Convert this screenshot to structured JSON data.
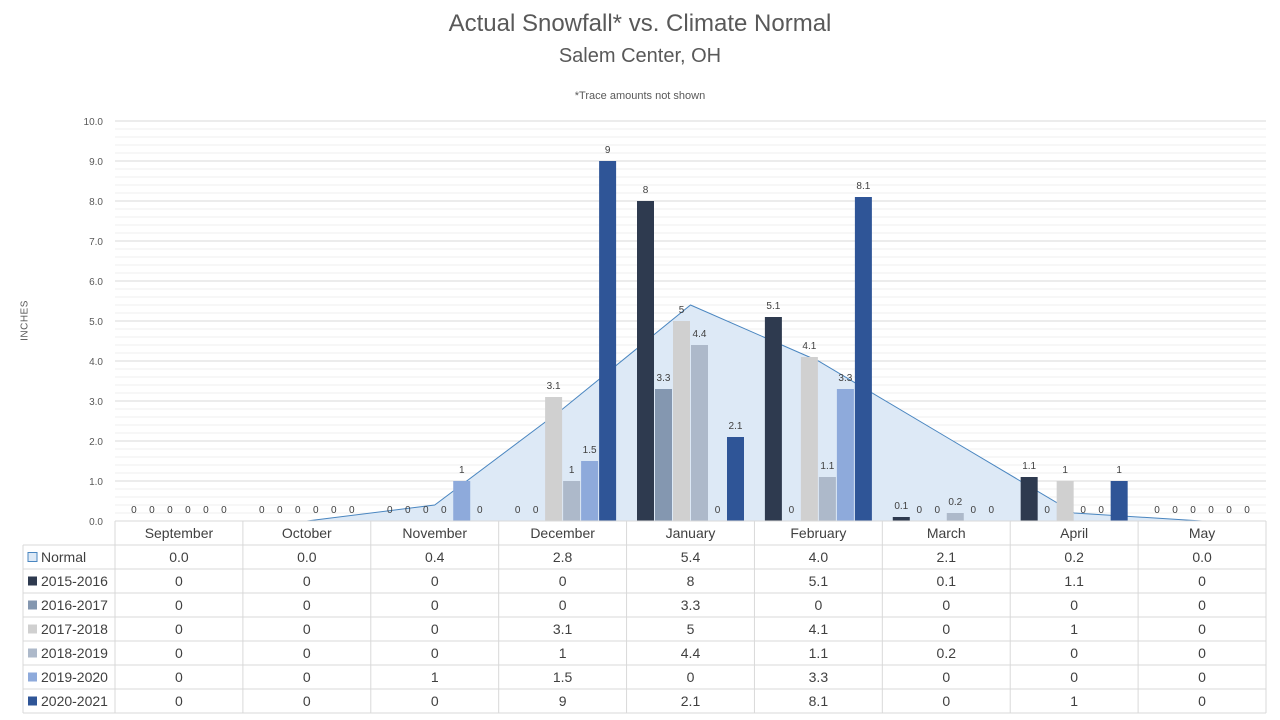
{
  "chart_data": {
    "type": "bar",
    "title": "Actual Snowfall* vs. Climate Normal",
    "subtitle": "Salem Center, OH",
    "note": "*Trace amounts not shown",
    "ylabel": "INCHES",
    "ylim": [
      0,
      10
    ],
    "yticks": [
      "0.0",
      "1.0",
      "2.0",
      "3.0",
      "4.0",
      "5.0",
      "6.0",
      "7.0",
      "8.0",
      "9.0",
      "10.0"
    ],
    "grid": true,
    "legend": "data-table",
    "categories": [
      "September",
      "October",
      "November",
      "December",
      "January",
      "February",
      "March",
      "April",
      "May"
    ],
    "normal": {
      "name": "Normal",
      "values": [
        0.0,
        0.0,
        0.4,
        2.8,
        5.4,
        4.0,
        2.1,
        0.2,
        0.0
      ],
      "labels": [
        "0.0",
        "0.0",
        "0.4",
        "2.8",
        "5.4",
        "4.0",
        "2.1",
        "0.2",
        "0.0"
      ],
      "color": "#dde9f6",
      "line_color": "#4a86c0"
    },
    "series": [
      {
        "name": "2015-2016",
        "color": "#2e3a4f",
        "values": [
          0,
          0,
          0,
          0,
          8,
          5.1,
          0.1,
          1.1,
          0
        ],
        "labels": [
          "0",
          "0",
          "0",
          "0",
          "8",
          "5.1",
          "0.1",
          "1.1",
          "0"
        ]
      },
      {
        "name": "2016-2017",
        "color": "#8497b0",
        "values": [
          0,
          0,
          0,
          0,
          3.3,
          0,
          0,
          0,
          0
        ],
        "labels": [
          "0",
          "0",
          "0",
          "0",
          "3.3",
          "0",
          "0",
          "0",
          "0"
        ]
      },
      {
        "name": "2017-2018",
        "color": "#d0d0d0",
        "values": [
          0,
          0,
          0,
          3.1,
          5,
          4.1,
          0,
          1,
          0
        ],
        "labels": [
          "0",
          "0",
          "0",
          "3.1",
          "5",
          "4.1",
          "0",
          "1",
          "0"
        ]
      },
      {
        "name": "2018-2019",
        "color": "#adb9ca",
        "values": [
          0,
          0,
          0,
          1,
          4.4,
          1.1,
          0.2,
          0,
          0
        ],
        "labels": [
          "0",
          "0",
          "0",
          "1",
          "4.4",
          "1.1",
          "0.2",
          "0",
          "0"
        ]
      },
      {
        "name": "2019-2020",
        "color": "#8eaadb",
        "values": [
          0,
          0,
          1,
          1.5,
          0,
          3.3,
          0,
          0,
          0
        ],
        "labels": [
          "0",
          "0",
          "1",
          "1.5",
          "0",
          "3.3",
          "0",
          "0",
          "0"
        ]
      },
      {
        "name": "2020-2021",
        "color": "#2f5597",
        "values": [
          0,
          0,
          0,
          9,
          2.1,
          8.1,
          0,
          1,
          0
        ],
        "labels": [
          "0",
          "0",
          "0",
          "9",
          "2.1",
          "8.1",
          "0",
          "1",
          "0"
        ]
      }
    ]
  }
}
